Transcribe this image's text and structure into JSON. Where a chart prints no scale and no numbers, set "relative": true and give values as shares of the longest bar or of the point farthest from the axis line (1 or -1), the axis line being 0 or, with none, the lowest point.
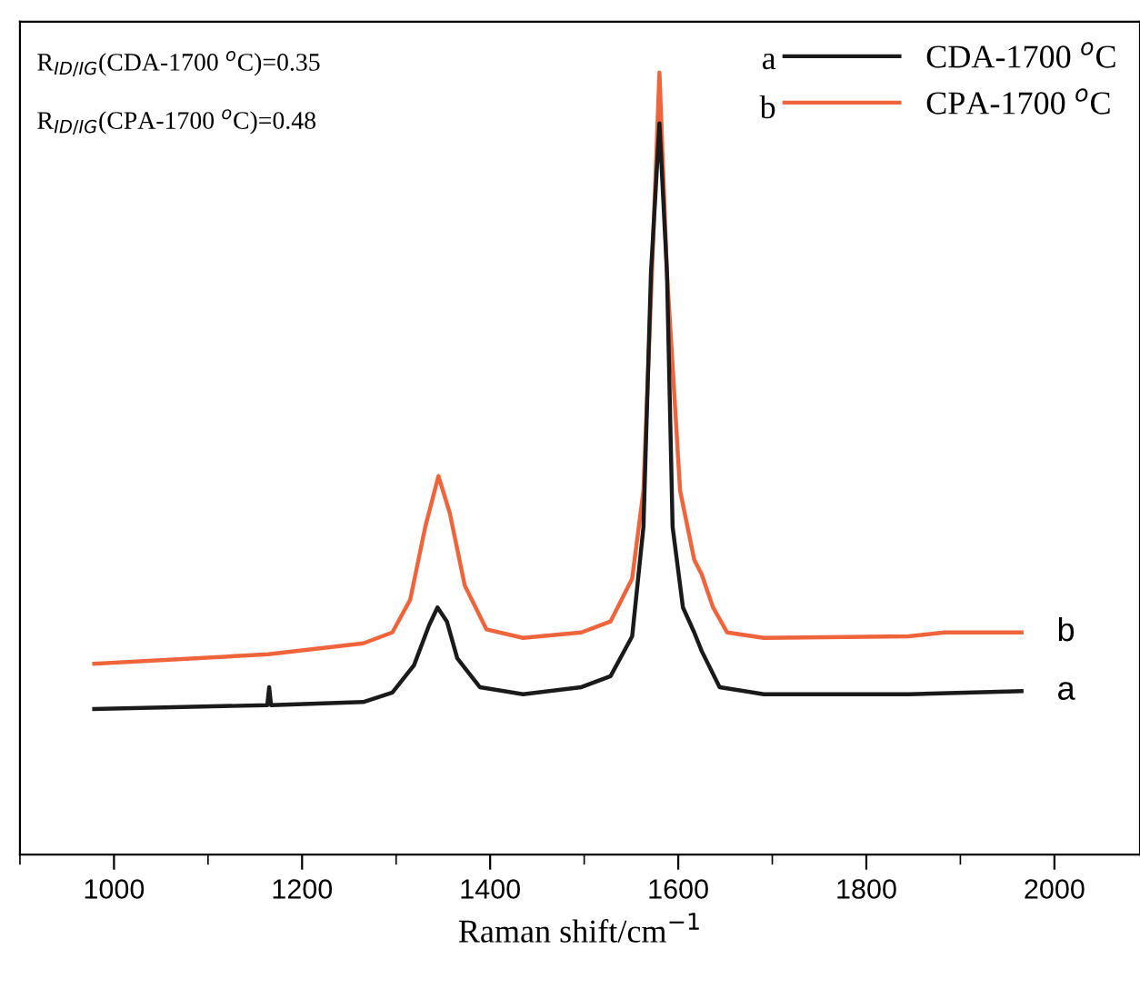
{
  "chart_data": {
    "type": "line",
    "relative": true,
    "xlabel": "Raman shift/cm$^{−1}$",
    "x": [
      979,
      1163,
      1165,
      1167,
      1265,
      1296,
      1319,
      1335,
      1344,
      1354,
      1365,
      1389,
      1435,
      1497,
      1528,
      1551,
      1563,
      1571,
      1580,
      1588,
      1594,
      1605,
      1617,
      1625,
      1644,
      1691,
      1845,
      1965
    ],
    "series": [
      {
        "name": "CDA-1700 $^{o}$C",
        "color": "#1a1a1a",
        "values": [
          0.186,
          0.191,
          0.214,
          0.191,
          0.195,
          0.207,
          0.242,
          0.293,
          0.316,
          0.298,
          0.251,
          0.214,
          0.205,
          0.214,
          0.228,
          0.279,
          0.419,
          0.744,
          0.935,
          0.744,
          0.419,
          0.316,
          0.284,
          0.26,
          0.214,
          0.205,
          0.205,
          0.209
        ]
      },
      {
        "name": "CPA-1700 $^{o}$C",
        "color": "#f0643c",
        "x": [
          979,
          1164,
          1265,
          1296,
          1315,
          1331,
          1345,
          1357,
          1373,
          1396,
          1435,
          1497,
          1528,
          1551,
          1563,
          1572,
          1580,
          1588,
          1602,
          1617,
          1625,
          1637,
          1652,
          1691,
          1845,
          1883,
          1965
        ],
        "values": [
          0.244,
          0.256,
          0.27,
          0.284,
          0.326,
          0.419,
          0.484,
          0.437,
          0.344,
          0.288,
          0.277,
          0.284,
          0.298,
          0.353,
          0.465,
          0.744,
          1.0,
          0.744,
          0.465,
          0.377,
          0.358,
          0.316,
          0.284,
          0.277,
          0.279,
          0.284,
          0.284
        ]
      }
    ],
    "xlim": [
      900,
      2091
    ],
    "xticks": [
      {
        "value": 900,
        "label": null
      },
      1000,
      {
        "value": 1100,
        "label": null
      },
      1200,
      {
        "value": 1300,
        "label": null
      },
      1400,
      {
        "value": 1500,
        "label": null
      },
      1600,
      {
        "value": 1700,
        "label": null
      },
      1800,
      {
        "value": 1900,
        "label": null
      },
      2000
    ],
    "tick_labels": "x",
    "legend": "top right",
    "grid": false,
    "marker": "none",
    "line_style": "solid",
    "annotations": [
      "R$_{ID/IG}$(CDA-1700 $^{o}$C)=0.35",
      "R$_{ID/IG}$(CPA-1700 $^{o}$C)=0.48",
      {
        "text": "a",
        "x": 1965,
        "y": 0.209
      },
      {
        "text": "b",
        "x": 1965,
        "y": 0.284
      }
    ]
  }
}
